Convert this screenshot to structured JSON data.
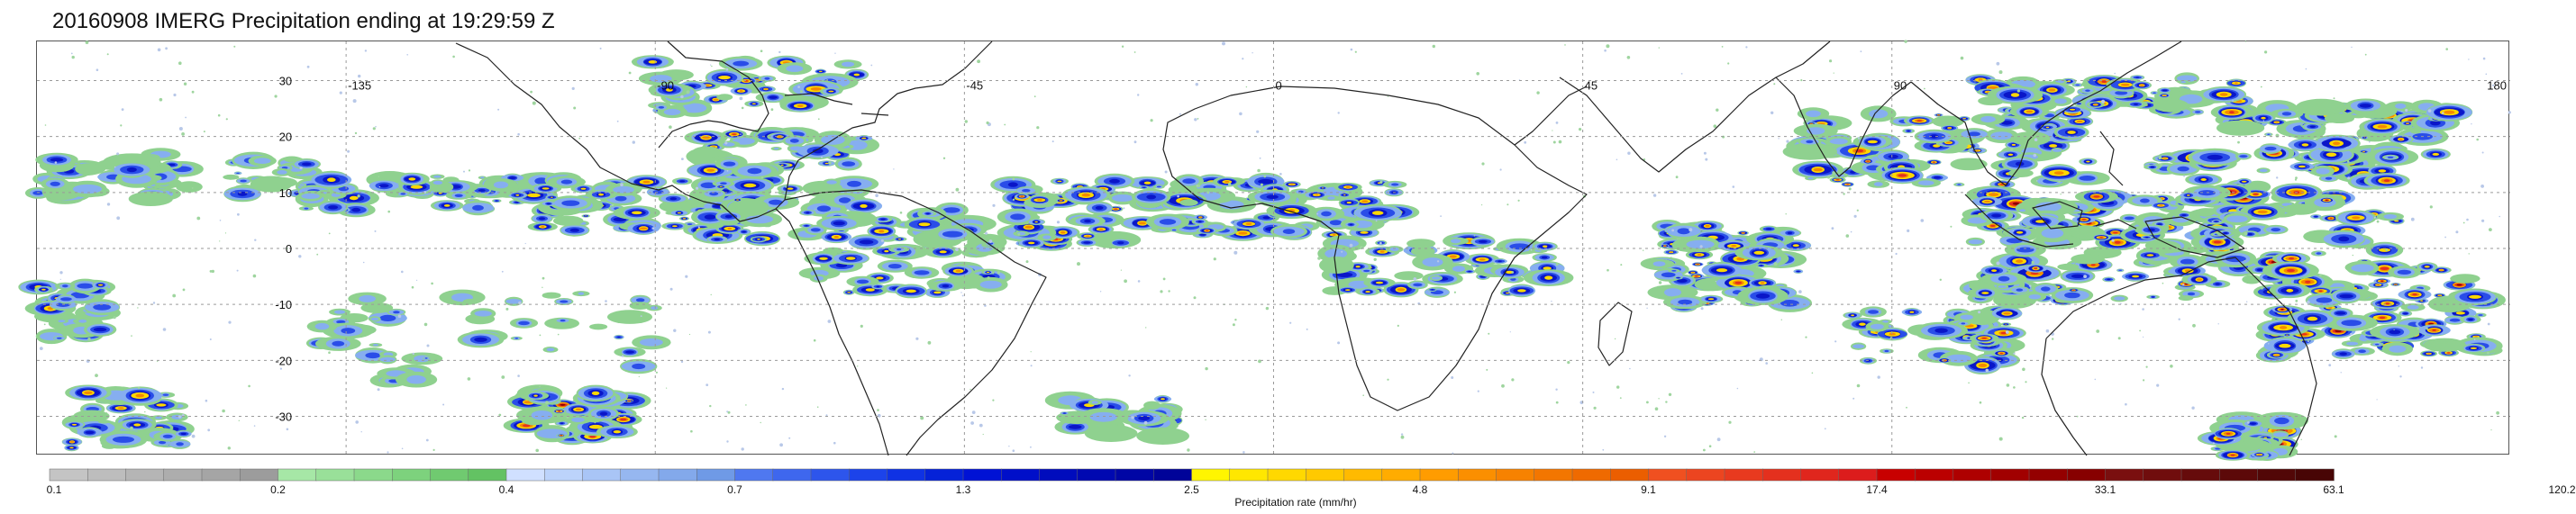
{
  "title": "20160908 IMERG Precipitation ending at 19:29:59 Z",
  "map": {
    "lon_range": [
      -180,
      180
    ],
    "lat_range": [
      -37,
      37
    ],
    "lat_labels": [
      "30",
      "20",
      "10",
      "0",
      "-10",
      "-20",
      "-30"
    ],
    "lat_values": [
      30,
      20,
      10,
      0,
      -10,
      -20,
      -30
    ],
    "lon_labels": [
      "-135",
      "-90",
      "-45",
      "0",
      "45",
      "90",
      "180"
    ],
    "lon_values": [
      -135,
      -90,
      -45,
      0,
      45,
      90,
      180
    ],
    "gridlines": true
  },
  "colorbar": {
    "title": "Precipitation rate (mm/hr)",
    "tick_labels": [
      "0.1",
      "0.2",
      "0.4",
      "0.7",
      "1.3",
      "2.5",
      "4.8",
      "9.1",
      "17.4",
      "33.1",
      "63.1",
      "120.2"
    ],
    "bins_per_tick": 6,
    "colors": [
      "#c4c4c4",
      "#bdbdbd",
      "#b5b5b5",
      "#adadad",
      "#a5a5a5",
      "#9c9c9c",
      "#a6e7a6",
      "#99e099",
      "#8bd98b",
      "#7dd27d",
      "#70ca70",
      "#63c263",
      "#d0e0ff",
      "#bcd3fb",
      "#a9c5f6",
      "#96b7f0",
      "#83a9eb",
      "#6f9ae6",
      "#4f78f0",
      "#3e67ee",
      "#2d55ec",
      "#1c43ea",
      "#0f32e4",
      "#0522d8",
      "#0012d5",
      "#000fc9",
      "#000cbd",
      "#0009b1",
      "#0006a5",
      "#000399",
      "#fff500",
      "#ffe700",
      "#ffd800",
      "#ffc900",
      "#ffba00",
      "#ffac00",
      "#ff9c00",
      "#fb8f00",
      "#f78200",
      "#f37600",
      "#ef6a00",
      "#eb5e00",
      "#f05020",
      "#ec4520",
      "#e83a1f",
      "#e4301e",
      "#e0261d",
      "#dc1c1c",
      "#c80000",
      "#bb0000",
      "#ae0000",
      "#a10000",
      "#940000",
      "#870000",
      "#7a0f0f",
      "#700d0d",
      "#660b0b",
      "#5c0909",
      "#520707",
      "#480505"
    ]
  },
  "precip_levels": [
    "#8fd18f",
    "#86aef0",
    "#2a4de8",
    "#0a16c8",
    "#ffd800",
    "#f58a00",
    "#e4301e",
    "#8a0000"
  ]
}
